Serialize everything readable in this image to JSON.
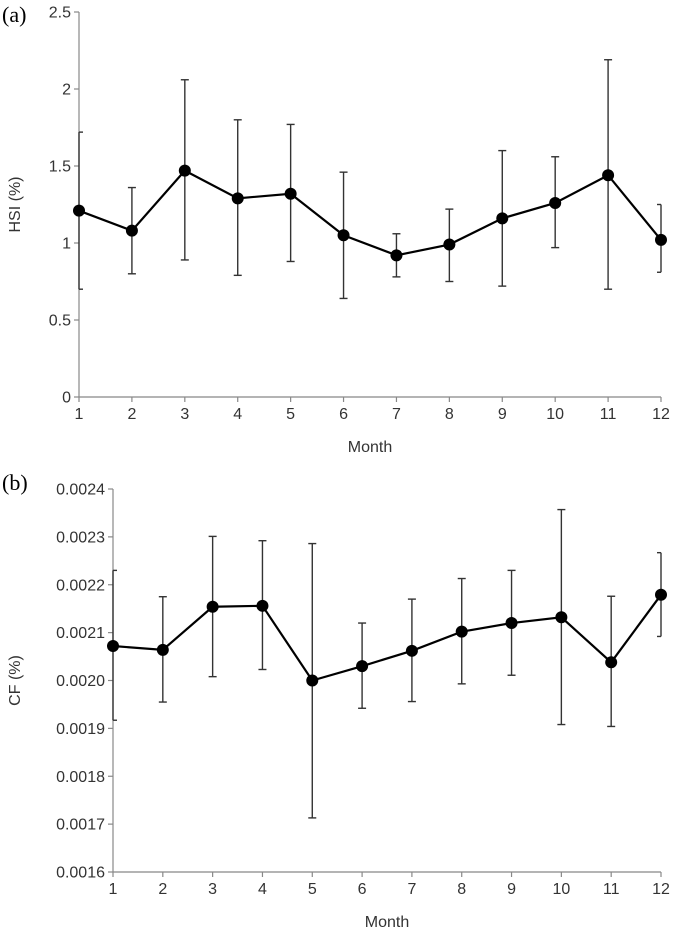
{
  "chart_data": [
    {
      "type": "line",
      "panel_label": "(a)",
      "xlabel": "Month",
      "ylabel": "HSI (%)",
      "x": [
        1,
        2,
        3,
        4,
        5,
        6,
        7,
        8,
        9,
        10,
        11,
        12
      ],
      "ylim": [
        0,
        2.5
      ],
      "yticks": [
        0,
        0.5,
        1,
        1.5,
        2,
        2.5
      ],
      "ytick_labels": [
        "0",
        "0.5",
        "1",
        "1.5",
        "2",
        "2.5"
      ],
      "xtick_labels": [
        "1",
        "2",
        "3",
        "4",
        "5",
        "6",
        "7",
        "8",
        "9",
        "10",
        "11",
        "12"
      ],
      "series": [
        {
          "values": [
            1.21,
            1.08,
            1.47,
            1.29,
            1.32,
            1.05,
            0.92,
            0.99,
            1.16,
            1.26,
            1.44,
            1.02
          ],
          "err_low": [
            0.7,
            0.8,
            0.89,
            0.79,
            0.88,
            0.64,
            0.78,
            0.75,
            0.72,
            0.97,
            0.7,
            0.81
          ],
          "err_high": [
            1.72,
            1.36,
            2.06,
            1.8,
            1.77,
            1.46,
            1.06,
            1.22,
            1.6,
            1.56,
            2.19,
            1.25
          ]
        }
      ],
      "grid": false
    },
    {
      "type": "line",
      "panel_label": "(b)",
      "xlabel": "Month",
      "ylabel": "CF (%)",
      "x": [
        1,
        2,
        3,
        4,
        5,
        6,
        7,
        8,
        9,
        10,
        11,
        12
      ],
      "ylim": [
        0.0016,
        0.0024
      ],
      "yticks": [
        0.0016,
        0.0017,
        0.0018,
        0.0019,
        0.002,
        0.0021,
        0.0022,
        0.0023,
        0.0024
      ],
      "ytick_labels": [
        "0.0016",
        "0.0017",
        "0.0018",
        "0.0019",
        "0.0020",
        "0.0021",
        "0.0022",
        "0.0023",
        "0.0024"
      ],
      "xtick_labels": [
        "1",
        "2",
        "3",
        "4",
        "5",
        "6",
        "7",
        "8",
        "9",
        "10",
        "11",
        "12"
      ],
      "series": [
        {
          "values": [
            0.002072,
            0.002064,
            0.002154,
            0.002156,
            0.002,
            0.00203,
            0.002062,
            0.002102,
            0.00212,
            0.002132,
            0.002038,
            0.002179
          ],
          "err_low": [
            0.001917,
            0.001955,
            0.002008,
            0.002023,
            0.001713,
            0.001942,
            0.001956,
            0.001993,
            0.002011,
            0.001908,
            0.001904,
            0.002092
          ],
          "err_high": [
            0.00223,
            0.002175,
            0.002301,
            0.002292,
            0.002286,
            0.00212,
            0.00217,
            0.002213,
            0.00223,
            0.002357,
            0.002176,
            0.002267
          ]
        }
      ],
      "grid": false
    }
  ]
}
